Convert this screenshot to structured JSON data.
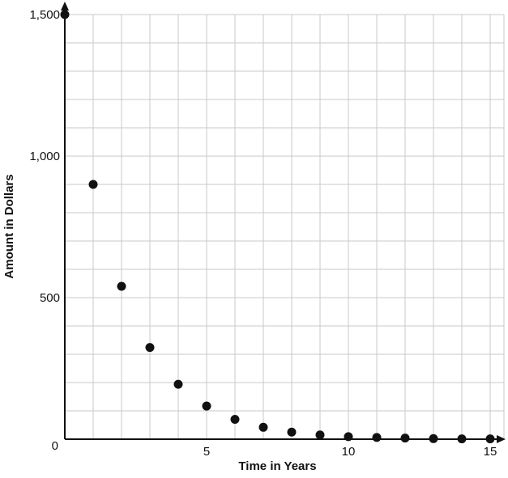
{
  "chart_data": {
    "type": "scatter",
    "title": "",
    "xlabel": "Time in Years",
    "ylabel": "Amount in Dollars",
    "x": [
      0,
      1,
      2,
      3,
      4,
      5,
      6,
      7,
      8,
      9,
      10,
      11,
      12,
      13,
      14,
      15
    ],
    "y": [
      1500,
      900,
      540,
      324,
      194,
      117,
      70,
      42,
      25,
      15,
      9,
      6,
      4,
      2,
      1,
      1
    ],
    "xlim": [
      0,
      15.5
    ],
    "ylim": [
      0,
      1500
    ],
    "x_ticks": [
      5,
      10,
      15
    ],
    "x_tick_labels": [
      "5",
      "10",
      "15"
    ],
    "y_ticks": [
      500,
      1000,
      1500
    ],
    "y_tick_labels": [
      "500",
      "1,000",
      "1,500"
    ],
    "origin_label": "0",
    "x_minor_step": 1,
    "y_minor_step": 100,
    "grid": true,
    "legend": "none",
    "colors": {
      "point": "#111111",
      "grid": "#c9c9c9",
      "axis": "#111111",
      "background": "#ffffff"
    }
  }
}
